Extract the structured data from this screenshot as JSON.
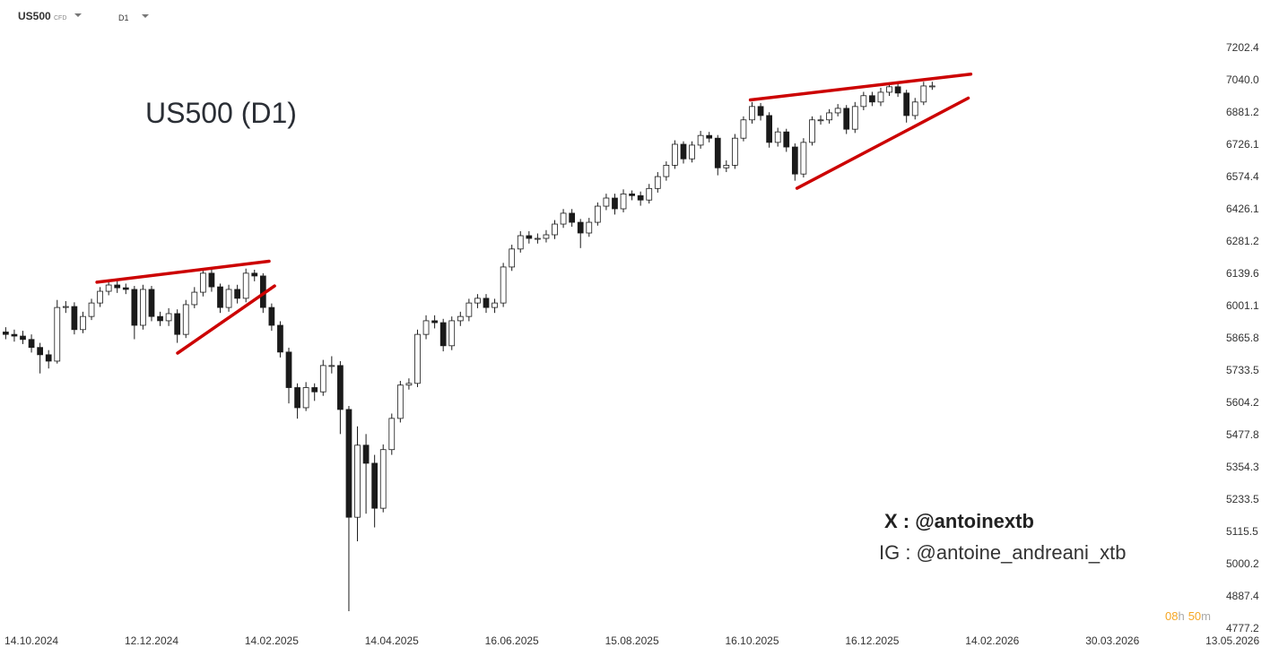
{
  "toolbar": {
    "symbol": "US500",
    "symbol_tag": "CFD",
    "interval": "D1"
  },
  "annotations": {
    "title": "US500 (D1)",
    "x_handle": "X : @antoinextb",
    "ig_handle": "IG : @antoine_andreani_xtb",
    "countdown": [
      "08",
      "h",
      "50",
      "m"
    ]
  },
  "chart_data": {
    "type": "candlestick",
    "log": true,
    "up_color": "#ffffff",
    "down_color": "#1a1a1a",
    "wick_color": "#1a1a1a",
    "trendline_color": "#cc0000",
    "ylim": [
      4765,
      7308
    ],
    "yticks": [
      7202.4,
      {
        "value": 7040.0,
        "label": "7040.0"
      },
      6881.2,
      6726.1,
      6574.4,
      6426.1,
      6281.2,
      6139.6,
      6001.1,
      5865.8,
      5733.5,
      5604.2,
      5477.8,
      5354.3,
      5233.5,
      5115.5,
      5000.2,
      4887.4,
      4777.2
    ],
    "xlim": [
      -11,
      414
    ],
    "xticks": [
      {
        "value": 0,
        "label": "14.10.2024"
      },
      {
        "value": 42,
        "label": "12.12.2024"
      },
      {
        "value": 84,
        "label": "14.02.2025"
      },
      {
        "value": 126,
        "label": "14.04.2025"
      },
      {
        "value": 168,
        "label": "16.06.2025"
      },
      {
        "value": 210,
        "label": "15.08.2025"
      },
      {
        "value": 252,
        "label": "16.10.2025"
      },
      {
        "value": 294,
        "label": "16.12.2025"
      },
      {
        "value": 336,
        "label": "14.02.2026"
      },
      {
        "value": 378,
        "label": "30.03.2026"
      },
      {
        "value": 420,
        "label": "13.05.2026"
      }
    ],
    "x": [
      -9,
      -6,
      -3,
      0,
      3,
      6,
      9,
      12,
      15,
      18,
      21,
      24,
      27,
      30,
      33,
      36,
      39,
      42,
      45,
      48,
      51,
      54,
      57,
      60,
      63,
      66,
      69,
      72,
      75,
      78,
      81,
      84,
      87,
      90,
      93,
      96,
      99,
      102,
      105,
      108,
      111,
      114,
      117,
      120,
      123,
      126,
      129,
      132,
      135,
      138,
      141,
      144,
      147,
      150,
      153,
      156,
      159,
      162,
      165,
      168,
      171,
      174,
      177,
      180,
      183,
      186,
      189,
      192,
      195,
      198,
      201,
      204,
      207,
      210,
      213,
      216,
      219,
      222,
      225,
      228,
      231,
      234,
      237,
      240,
      243,
      246,
      249,
      252,
      255,
      258,
      261,
      264,
      267,
      270,
      273,
      276,
      279,
      282,
      285,
      288,
      291,
      294,
      297,
      300,
      303,
      306,
      309,
      312,
      315
    ],
    "open": [
      5890,
      5880,
      5873,
      5859,
      5826,
      5796,
      5770,
      5993,
      5997,
      5900,
      5955,
      6012,
      6062,
      6089,
      6077,
      6070,
      5918,
      6070,
      5955,
      5937,
      5967,
      5880,
      6005,
      6058,
      6140,
      6081,
      5993,
      6070,
      6032,
      6140,
      6128,
      5993,
      5918,
      5807,
      5663,
      5583,
      5663,
      5646,
      5752,
      5752,
      5576,
      5167,
      5437,
      5368,
      5200,
      5420,
      5541,
      5673,
      5680,
      5880,
      5937,
      5929,
      5833,
      5937,
      5955,
      6012,
      6032,
      5993,
      6012,
      6167,
      6246,
      6305,
      6293,
      6293,
      6309,
      6357,
      6406,
      6365,
      6317,
      6365,
      6438,
      6475,
      6426,
      6494,
      6486,
      6466,
      6519,
      6574,
      6627,
      6726,
      6657,
      6722,
      6768,
      6755,
      6615,
      6627,
      6755,
      6843,
      6908,
      6864,
      6735,
      6785,
      6713,
      6586,
      6735,
      6843,
      6843,
      6877,
      6899,
      6798,
      6908,
      6961,
      6930,
      6978,
      7005,
      6974,
      6864,
      6930,
      7009
    ],
    "high": [
      5910,
      5900,
      5895,
      5880,
      5845,
      5815,
      6025,
      6020,
      6015,
      5975,
      6030,
      6080,
      6110,
      6105,
      6095,
      6085,
      6090,
      6085,
      5975,
      5990,
      5985,
      6025,
      6080,
      6160,
      6155,
      6095,
      6090,
      6090,
      6160,
      6155,
      6140,
      6010,
      5935,
      5825,
      5680,
      5685,
      5680,
      5775,
      5790,
      5770,
      5590,
      5510,
      5480,
      5400,
      5440,
      5560,
      5690,
      5700,
      5900,
      5960,
      5960,
      5945,
      5955,
      5975,
      6030,
      6050,
      6050,
      6030,
      6185,
      6265,
      6325,
      6325,
      6315,
      6330,
      6375,
      6425,
      6425,
      6380,
      6385,
      6455,
      6495,
      6495,
      6515,
      6510,
      6505,
      6540,
      6595,
      6645,
      6745,
      6740,
      6740,
      6790,
      6785,
      6770,
      6650,
      6775,
      6860,
      6930,
      6925,
      6880,
      6805,
      6800,
      6730,
      6755,
      6860,
      6865,
      6895,
      6920,
      6915,
      6930,
      6980,
      6980,
      7000,
      7025,
      7025,
      6990,
      6950,
      7030,
      7030
    ],
    "low": [
      5860,
      5850,
      5840,
      5805,
      5720,
      5740,
      5760,
      5970,
      5880,
      5885,
      5940,
      5995,
      6045,
      6055,
      6050,
      5860,
      5900,
      5935,
      5915,
      5915,
      5845,
      5865,
      5990,
      6040,
      6060,
      5970,
      5975,
      6010,
      6015,
      6105,
      5970,
      5895,
      5785,
      5600,
      5540,
      5570,
      5610,
      5630,
      5720,
      5480,
      4835,
      5080,
      5180,
      5130,
      5185,
      5400,
      5525,
      5655,
      5665,
      5860,
      5905,
      5810,
      5815,
      5915,
      5935,
      5990,
      5970,
      5970,
      5995,
      6150,
      6230,
      6270,
      6270,
      6275,
      6290,
      6340,
      6345,
      6250,
      6300,
      6350,
      6420,
      6400,
      6410,
      6465,
      6440,
      6450,
      6500,
      6555,
      6610,
      6635,
      6640,
      6705,
      6735,
      6580,
      6595,
      6610,
      6740,
      6825,
      6840,
      6710,
      6715,
      6690,
      6555,
      6570,
      6720,
      6820,
      6825,
      6860,
      6775,
      6780,
      6890,
      6910,
      6910,
      6960,
      6955,
      6830,
      6845,
      6915,
      6990
    ],
    "close": [
      5880,
      5873,
      5859,
      5826,
      5796,
      5770,
      5993,
      5997,
      5900,
      5955,
      6012,
      6062,
      6089,
      6077,
      6070,
      5918,
      6070,
      5955,
      5937,
      5967,
      5880,
      6005,
      6058,
      6140,
      6081,
      5993,
      6070,
      6032,
      6140,
      6128,
      5993,
      5918,
      5807,
      5663,
      5583,
      5663,
      5646,
      5752,
      5752,
      5576,
      5167,
      5437,
      5368,
      5200,
      5420,
      5541,
      5673,
      5680,
      5880,
      5937,
      5929,
      5833,
      5937,
      5955,
      6012,
      6032,
      5993,
      6012,
      6167,
      6246,
      6305,
      6293,
      6293,
      6309,
      6357,
      6406,
      6365,
      6317,
      6365,
      6438,
      6475,
      6426,
      6494,
      6486,
      6466,
      6519,
      6574,
      6627,
      6726,
      6657,
      6722,
      6768,
      6755,
      6615,
      6627,
      6755,
      6843,
      6908,
      6864,
      6735,
      6785,
      6713,
      6586,
      6735,
      6843,
      6843,
      6877,
      6899,
      6798,
      6908,
      6961,
      6930,
      6978,
      7005,
      6974,
      6864,
      6930,
      7009,
      7009
    ],
    "trendlines": [
      {
        "x": [
          22.9,
          83.1
        ],
        "y": [
          6101,
          6192
        ]
      },
      {
        "x": [
          51.1,
          85.0
        ],
        "y": [
          5803,
          6085
        ]
      },
      {
        "x": [
          251.4,
          328.5
        ],
        "y": [
          6940,
          7068
        ]
      },
      {
        "x": [
          267.7,
          327.6
        ],
        "y": [
          6520,
          6949
        ]
      }
    ]
  }
}
